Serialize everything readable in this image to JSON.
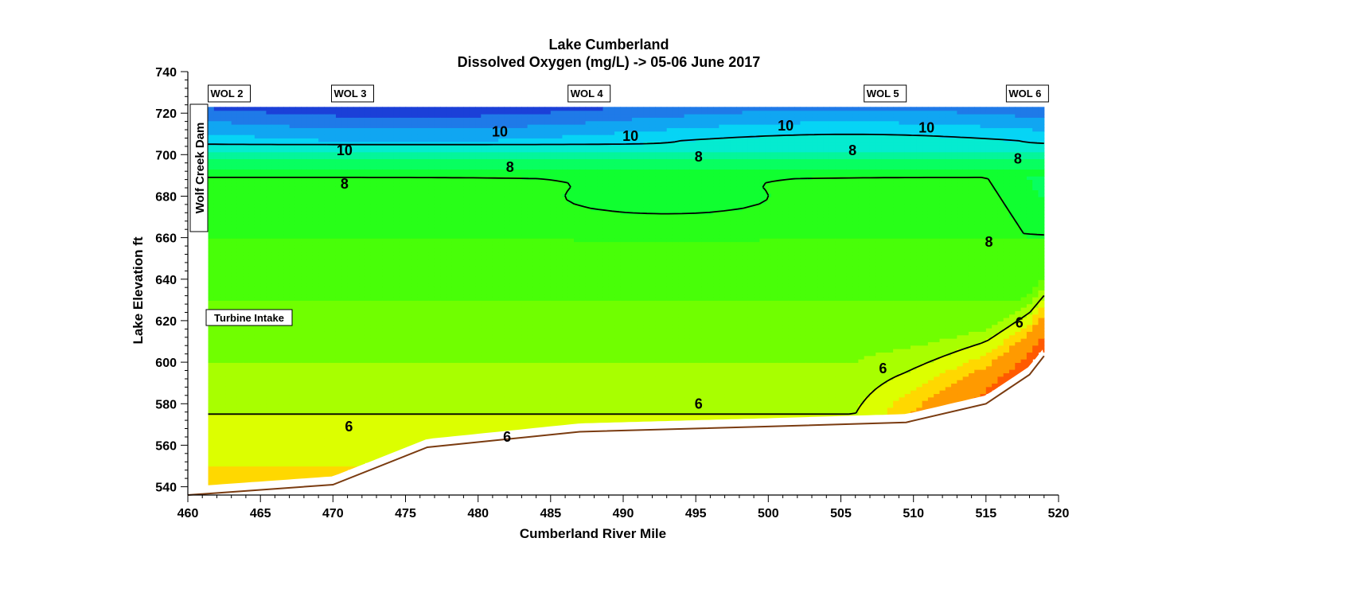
{
  "chart_data": {
    "type": "heatmap",
    "title": "Lake Cumberland",
    "subtitle": "Dissolved Oxygen (mg/L)  ->  05-06 June 2017",
    "xlabel": "Cumberland River Mile",
    "ylabel": "Lake  Elevation  ft",
    "xlim": [
      460,
      520
    ],
    "ylim": [
      536,
      740
    ],
    "x_ticks": [
      460,
      465,
      470,
      475,
      480,
      485,
      490,
      495,
      500,
      505,
      510,
      515,
      520
    ],
    "y_ticks": [
      540,
      560,
      580,
      600,
      620,
      640,
      660,
      680,
      700,
      720,
      740
    ],
    "surface_elevation": 723,
    "stations": [
      {
        "name": "WOL 2",
        "mile": 461.4
      },
      {
        "name": "WOL 3",
        "mile": 469.9
      },
      {
        "name": "WOL 4",
        "mile": 486.2
      },
      {
        "name": "WOL 5",
        "mile": 506.6
      },
      {
        "name": "WOL 6",
        "mile": 516.4
      }
    ],
    "dam_label": "Wolf Creek Dam",
    "turbine_label": "Turbine Intake",
    "bottom_profile": [
      {
        "x": 460.0,
        "y": 536
      },
      {
        "x": 470.0,
        "y": 541
      },
      {
        "x": 476.5,
        "y": 559
      },
      {
        "x": 487.0,
        "y": 566.5
      },
      {
        "x": 500.0,
        "y": 569
      },
      {
        "x": 509.5,
        "y": 571
      },
      {
        "x": 515.0,
        "y": 580
      },
      {
        "x": 518.0,
        "y": 594
      },
      {
        "x": 519.0,
        "y": 603
      }
    ],
    "contour_line_labels": [
      {
        "text": "10",
        "x": 481.5,
        "y": 711
      },
      {
        "text": "10",
        "x": 470.8,
        "y": 702
      },
      {
        "text": "10",
        "x": 490.5,
        "y": 709
      },
      {
        "text": "10",
        "x": 501.2,
        "y": 714
      },
      {
        "text": "10",
        "x": 510.9,
        "y": 713
      },
      {
        "text": "8",
        "x": 470.8,
        "y": 686
      },
      {
        "text": "8",
        "x": 482.2,
        "y": 694
      },
      {
        "text": "8",
        "x": 495.2,
        "y": 699
      },
      {
        "text": "8",
        "x": 505.8,
        "y": 702
      },
      {
        "text": "8",
        "x": 517.2,
        "y": 698
      },
      {
        "text": "8",
        "x": 515.2,
        "y": 658
      },
      {
        "text": "6",
        "x": 471.1,
        "y": 569
      },
      {
        "text": "6",
        "x": 482.0,
        "y": 564
      },
      {
        "text": "6",
        "x": 495.2,
        "y": 580
      },
      {
        "text": "6",
        "x": 507.9,
        "y": 597
      },
      {
        "text": "6",
        "x": 517.3,
        "y": 619
      }
    ],
    "color_scale": [
      {
        "value": 11.5,
        "color": "#1b40d8"
      },
      {
        "value": 11.0,
        "color": "#1f7ae8"
      },
      {
        "value": 10.5,
        "color": "#10a6f2"
      },
      {
        "value": 10.0,
        "color": "#06d4f5"
      },
      {
        "value": 9.5,
        "color": "#05ebd0"
      },
      {
        "value": 9.0,
        "color": "#05f59a"
      },
      {
        "value": 8.5,
        "color": "#08ff60"
      },
      {
        "value": 8.0,
        "color": "#10ff30"
      },
      {
        "value": 7.5,
        "color": "#28ff18"
      },
      {
        "value": 7.0,
        "color": "#48ff08"
      },
      {
        "value": 6.5,
        "color": "#70ff00"
      },
      {
        "value": 6.0,
        "color": "#a8ff00"
      },
      {
        "value": 5.5,
        "color": "#dcff00"
      },
      {
        "value": 5.0,
        "color": "#ffd800"
      },
      {
        "value": 4.0,
        "color": "#ff9a00"
      },
      {
        "value": 3.0,
        "color": "#ff5a00"
      },
      {
        "value": 2.0,
        "color": "#e02000"
      }
    ]
  }
}
